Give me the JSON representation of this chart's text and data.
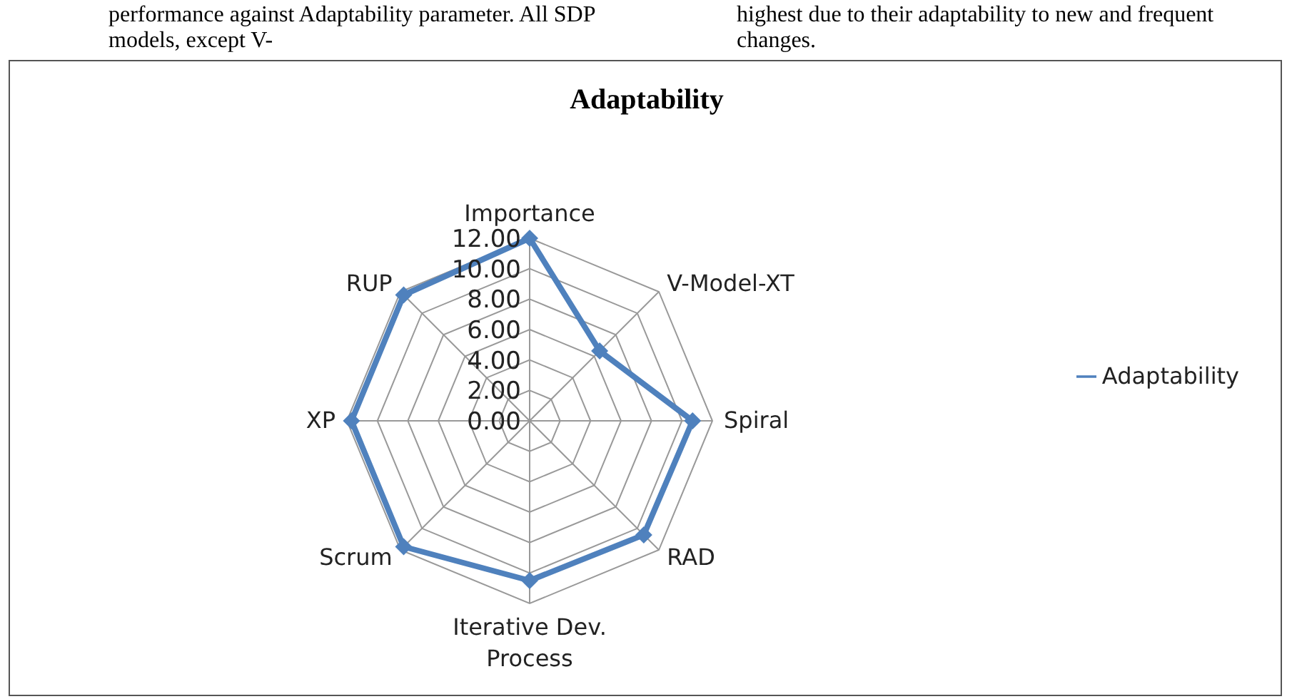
{
  "chart_data": {
    "type": "radar",
    "title": "Adaptability",
    "categories": [
      "Importance",
      "V-Model-XT",
      "Spiral",
      "RAD",
      "Iterative Dev. Process",
      "Scrum",
      "XP",
      "RUP"
    ],
    "series": [
      {
        "name": "Adaptability",
        "color": "#4f81bd",
        "values": [
          12,
          6.5,
          10.7,
          10.6,
          10.5,
          11.7,
          11.7,
          11.7
        ]
      }
    ],
    "ylim": [
      0,
      12
    ],
    "yticks": [
      {
        "value": 0,
        "label": "0.00"
      },
      {
        "value": 2,
        "label": "2.00"
      },
      {
        "value": 4,
        "label": "4.00"
      },
      {
        "value": 6,
        "label": "6.00"
      },
      {
        "value": 8,
        "label": "8.00"
      },
      {
        "value": 10,
        "label": "10.00"
      },
      {
        "value": 12,
        "label": "12.00"
      }
    ],
    "grid": true,
    "legend": "right",
    "marker": "diamond",
    "line_style": "solid",
    "annotations": [
      "performance against Adaptability parameter. All SDP models, except V-",
      "highest due to their adaptability to new and frequent changes."
    ]
  }
}
